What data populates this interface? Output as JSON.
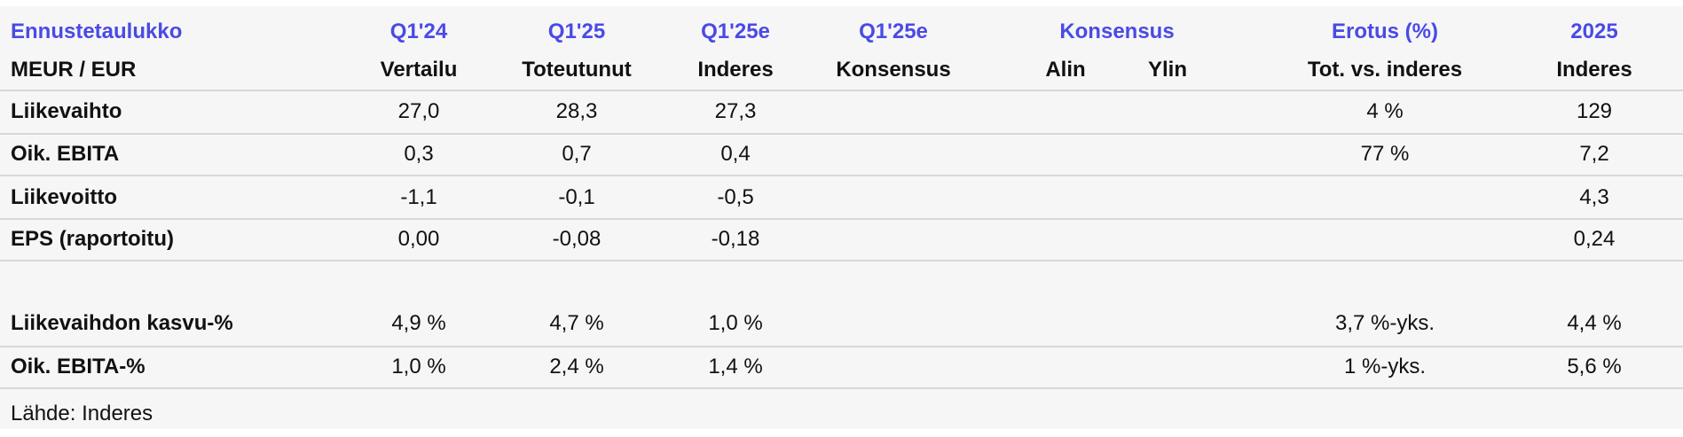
{
  "header": {
    "title_row": [
      "Ennustetaulukko",
      "Q1'24",
      "Q1'25",
      "Q1'25e",
      "Q1'25e",
      "Konsensus",
      "Erotus (%)",
      "2025"
    ],
    "sub_row": [
      "MEUR / EUR",
      "Vertailu",
      "Toteutunut",
      "Inderes",
      "Konsensus",
      "Alin",
      "Ylin",
      "Tot. vs. inderes",
      "Inderes"
    ]
  },
  "table": {
    "rows": [
      [
        "Liikevaihto",
        "27,0",
        "28,3",
        "27,3",
        null,
        null,
        null,
        "4 %",
        "129"
      ],
      [
        "Oik. EBITA",
        "0,3",
        "0,7",
        "0,4",
        null,
        null,
        null,
        "77 %",
        "7,2"
      ],
      [
        "Liikevoitto",
        "-1,1",
        "-0,1",
        "-0,5",
        null,
        null,
        null,
        null,
        "4,3"
      ],
      [
        "EPS (raportoitu)",
        "0,00",
        "-0,08",
        "-0,18",
        null,
        null,
        null,
        null,
        "0,24"
      ],
      [
        "Liikevaihdon kasvu-%",
        "4,9 %",
        "4,7 %",
        "1,0 %",
        null,
        null,
        null,
        "3,7 %-yks.",
        "4,4 %"
      ],
      [
        "Oik. EBITA-%",
        "1,0 %",
        "2,4 %",
        "1,4 %",
        null,
        null,
        null,
        "1 %-yks.",
        "5,6 %"
      ]
    ]
  },
  "footer": {
    "source": "Lähde: Inderes"
  }
}
